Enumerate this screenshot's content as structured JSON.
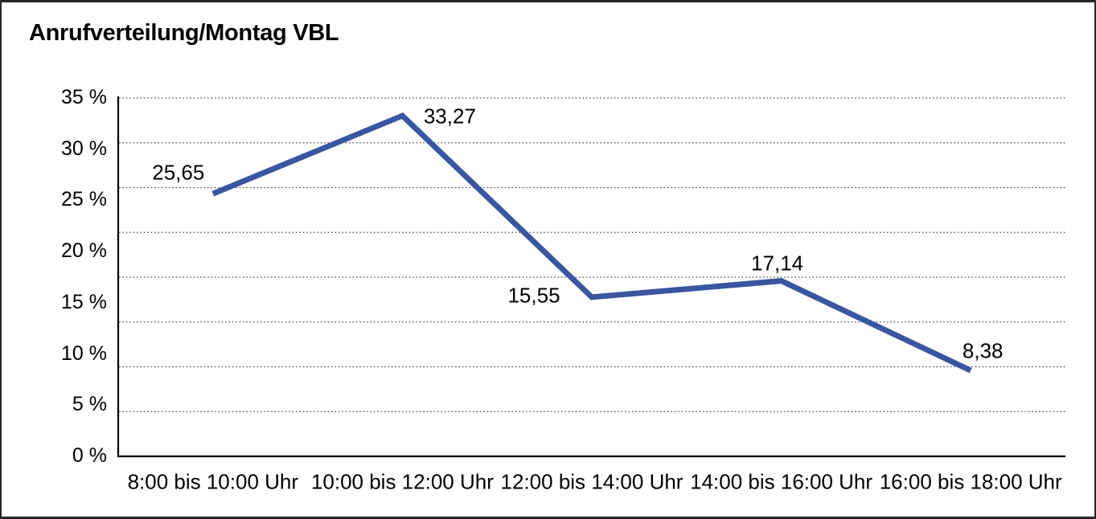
{
  "page": {
    "title": "Anrufverteilung/Montag VBL"
  },
  "chart_data": {
    "type": "line",
    "title": "Anrufverteilung/Montag VBL",
    "categories": [
      "8:00 bis 10:00 Uhr",
      "10:00 bis 12:00 Uhr",
      "12:00 bis 14:00 Uhr",
      "14:00 bis 16:00 Uhr",
      "16:00 bis 18:00 Uhr"
    ],
    "values": [
      25.65,
      33.27,
      15.55,
      17.14,
      8.38
    ],
    "value_labels": [
      "25,65",
      "33,27",
      "15,55",
      "17,14",
      "8,38"
    ],
    "y_ticks": [
      {
        "value": 0,
        "label": "0 %"
      },
      {
        "value": 5,
        "label": "5 %"
      },
      {
        "value": 10,
        "label": "10 %"
      },
      {
        "value": 15,
        "label": "15 %"
      },
      {
        "value": 20,
        "label": "20 %"
      },
      {
        "value": 25,
        "label": "25 %"
      },
      {
        "value": 30,
        "label": "30 %"
      },
      {
        "value": 35,
        "label": "35 %"
      }
    ],
    "ylim": [
      0,
      35
    ],
    "grid": {
      "style": "dotted",
      "horizontal_bands": 8,
      "vertical_lines": 0
    },
    "legend": "none",
    "colors": {
      "line": "#3A56A0",
      "text": "#000000",
      "grid": "#4a4a4a",
      "axis": "#000000",
      "background": "#ffffff",
      "frame": "#262626"
    }
  }
}
